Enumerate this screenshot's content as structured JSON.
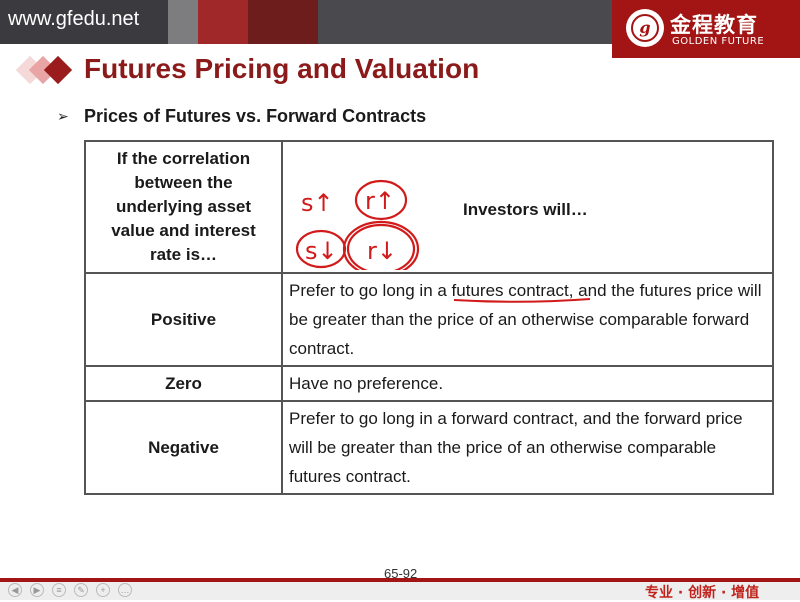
{
  "header": {
    "site_url": "www.gfedu.net",
    "logo_cn": "金程教育",
    "logo_en": "GOLDEN FUTURE",
    "logo_seal_letter": "g",
    "band_colors": [
      "#7d7d80",
      "#a02828",
      "#6e1d1d",
      "#b53020"
    ]
  },
  "slide": {
    "title": "Futures Pricing and Valuation",
    "bullet_icon": "arrow-bullet-icon",
    "subtitle": "Prices of Futures vs. Forward Contracts"
  },
  "table": {
    "head_left": "If the correlation between the underlying asset value and interest rate is…",
    "head_right": "Investors will…",
    "rows": [
      {
        "correlation": "Positive",
        "text_before": "Prefer to go long in a ",
        "underlined": "futures contract",
        "text_after": ", and the futures price will be greater than the price of an otherwise comparable forward contract."
      },
      {
        "correlation": "Zero",
        "text": "Have no preference."
      },
      {
        "correlation": "Negative",
        "text": "Prefer to go long in a forward contract, and the forward price will be greater than the price of an otherwise comparable futures contract."
      }
    ]
  },
  "annotations": {
    "s_up": "s↑",
    "r_up": "r↑",
    "s_down": "s↓",
    "r_down": "r↓",
    "ink_color": "#d11a1a"
  },
  "footer": {
    "page_number": "65-92",
    "slogan": "专业 · 创新 · 增值",
    "nav_icons": [
      "prev-icon",
      "next-icon",
      "menu-icon",
      "pen-icon",
      "zoom-icon",
      "more-icon"
    ]
  }
}
